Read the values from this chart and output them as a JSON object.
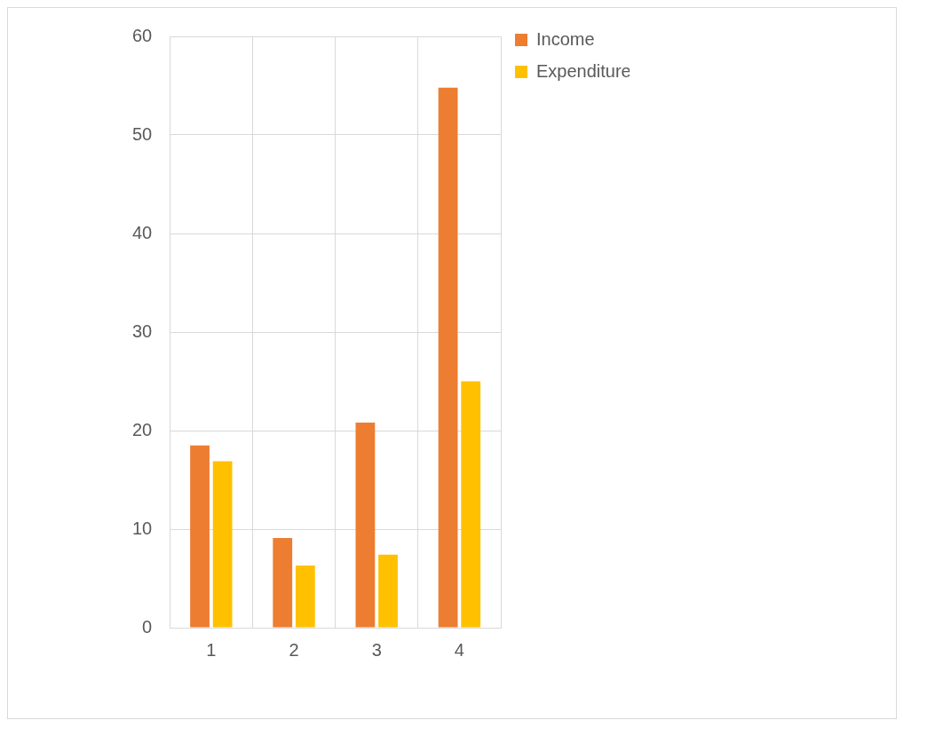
{
  "chart_data": {
    "type": "bar",
    "categories": [
      "1",
      "2",
      "3",
      "4"
    ],
    "series": [
      {
        "name": "Income",
        "color": "#ed7d31",
        "values": [
          18.5,
          9.1,
          20.8,
          54.8
        ]
      },
      {
        "name": "Expenditure",
        "color": "#ffc000",
        "values": [
          16.9,
          6.3,
          7.4,
          25
        ]
      }
    ],
    "ylim": [
      0,
      60
    ],
    "yticks": [
      0,
      10,
      20,
      30,
      40,
      50,
      60
    ],
    "grid": true,
    "legend": "top right"
  }
}
